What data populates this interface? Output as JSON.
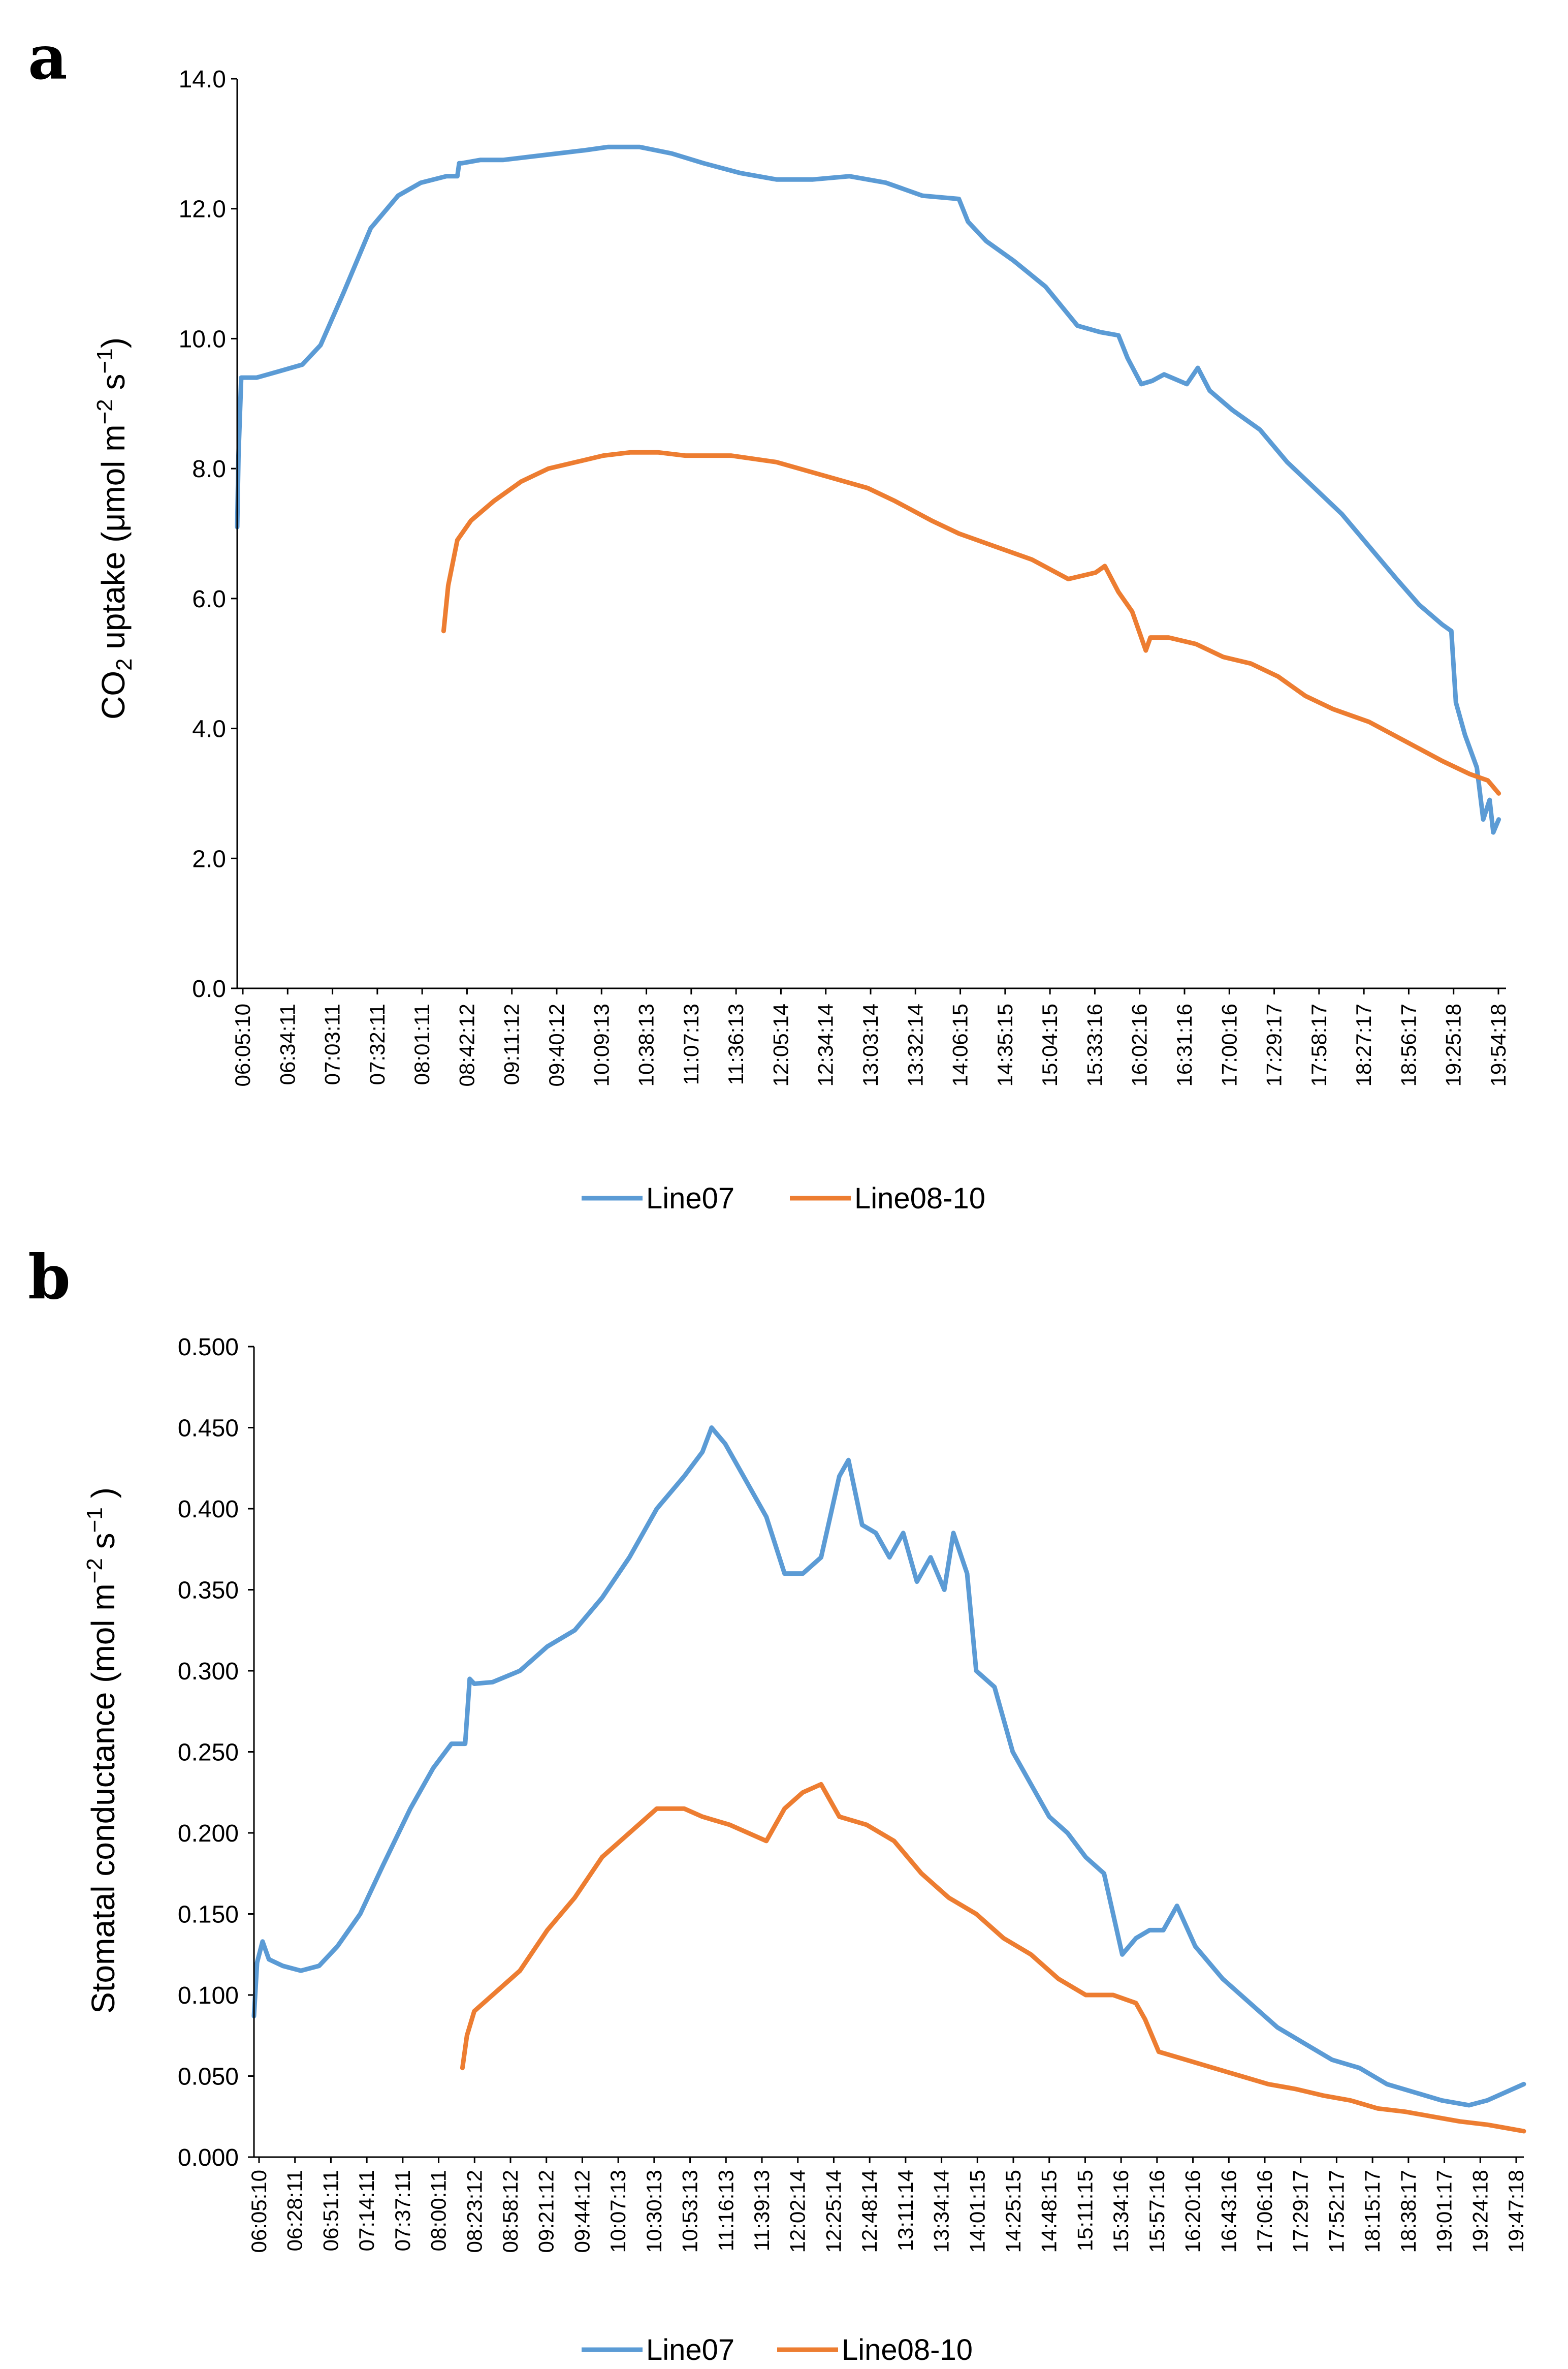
{
  "colors": {
    "line07": "#5b9bd5",
    "line0810": "#ed7d31",
    "axis": "#000000"
  },
  "chart_data": [
    {
      "panel": "a",
      "type": "line",
      "title": "",
      "ylabel_main": "CO",
      "ylabel_sub": "2",
      "ylabel_rest": " uptake  (μmol m",
      "ylabel_sup1": "−2",
      "ylabel_mid": " s",
      "ylabel_sup2": "−1",
      "ylabel_end": ")",
      "ylim": [
        0,
        14
      ],
      "y_ticks": [
        "0.0",
        "2.0",
        "4.0",
        "6.0",
        "8.0",
        "10.0",
        "12.0",
        "14.0"
      ],
      "x_ticks": [
        "06:05:10",
        "06:34:11",
        "07:03:11",
        "07:32:11",
        "08:01:11",
        "08:42:12",
        "09:11:12",
        "09:40:12",
        "10:09:13",
        "10:38:13",
        "11:07:13",
        "11:36:13",
        "12:05:14",
        "12:34:14",
        "13:03:14",
        "13:32:14",
        "14:06:15",
        "14:35:15",
        "15:04:15",
        "15:33:16",
        "16:02:16",
        "16:31:16",
        "17:00:16",
        "17:29:17",
        "17:58:17",
        "18:27:17",
        "18:56:17",
        "19:25:18",
        "19:54:18"
      ],
      "xlim_hours": [
        6.0861,
        20.0
      ],
      "legend": [
        "Line07",
        "Line08-10"
      ],
      "series": [
        {
          "name": "Line07",
          "x_hours": [
            6.086,
            6.1,
            6.13,
            6.18,
            6.3,
            6.55,
            6.8,
            7.0,
            7.25,
            7.55,
            7.85,
            8.1,
            8.38,
            8.5,
            8.52,
            8.55,
            8.75,
            9.0,
            9.3,
            9.6,
            9.9,
            10.15,
            10.5,
            10.85,
            11.2,
            11.6,
            12.0,
            12.4,
            12.8,
            13.2,
            13.6,
            14.0,
            14.1,
            14.3,
            14.6,
            14.95,
            15.3,
            15.55,
            15.75,
            15.85,
            16.0,
            16.12,
            16.25,
            16.5,
            16.62,
            16.75,
            17.0,
            17.3,
            17.6,
            17.9,
            18.2,
            18.5,
            18.8,
            19.05,
            19.3,
            19.4,
            19.45,
            19.55,
            19.68,
            19.75,
            19.82,
            19.86,
            19.92
          ],
          "y": [
            7.1,
            8.2,
            9.4,
            9.4,
            9.4,
            9.5,
            9.6,
            9.9,
            10.7,
            11.7,
            12.2,
            12.4,
            12.5,
            12.5,
            12.7,
            12.7,
            12.75,
            12.75,
            12.8,
            12.85,
            12.9,
            12.95,
            12.95,
            12.85,
            12.7,
            12.55,
            12.45,
            12.45,
            12.5,
            12.4,
            12.2,
            12.15,
            11.8,
            11.5,
            11.2,
            10.8,
            10.2,
            10.1,
            10.05,
            9.7,
            9.3,
            9.35,
            9.45,
            9.3,
            9.55,
            9.2,
            8.9,
            8.6,
            8.1,
            7.7,
            7.3,
            6.8,
            6.3,
            5.9,
            5.6,
            5.5,
            4.4,
            3.9,
            3.4,
            2.6,
            2.9,
            2.4,
            2.6
          ]
        },
        {
          "name": "Line08-10",
          "x_hours": [
            8.35,
            8.4,
            8.5,
            8.65,
            8.9,
            9.2,
            9.5,
            9.8,
            10.1,
            10.4,
            10.7,
            11.0,
            11.5,
            12.0,
            12.5,
            13.0,
            13.3,
            13.7,
            14.0,
            14.4,
            14.8,
            15.2,
            15.5,
            15.6,
            15.75,
            15.9,
            16.0,
            16.05,
            16.1,
            16.3,
            16.6,
            16.9,
            17.2,
            17.5,
            17.8,
            18.1,
            18.5,
            18.9,
            19.3,
            19.6,
            19.8,
            19.92
          ],
          "y": [
            5.5,
            6.2,
            6.9,
            7.2,
            7.5,
            7.8,
            8.0,
            8.1,
            8.2,
            8.25,
            8.25,
            8.2,
            8.2,
            8.1,
            7.9,
            7.7,
            7.5,
            7.2,
            7.0,
            6.8,
            6.6,
            6.3,
            6.4,
            6.5,
            6.1,
            5.8,
            5.4,
            5.2,
            5.4,
            5.4,
            5.3,
            5.1,
            5.0,
            4.8,
            4.5,
            4.3,
            4.1,
            3.8,
            3.5,
            3.3,
            3.2,
            3.0
          ]
        }
      ]
    },
    {
      "panel": "b",
      "type": "line",
      "title": "",
      "ylabel_main": "Stomatal conductance (mol m",
      "ylabel_sup1": "−2",
      "ylabel_mid": " s",
      "ylabel_sup2": "−1",
      "ylabel_end": " )",
      "ylim": [
        0,
        0.5
      ],
      "y_ticks": [
        "0.000",
        "0.050",
        "0.100",
        "0.150",
        "0.200",
        "0.250",
        "0.300",
        "0.350",
        "0.400",
        "0.450",
        "0.500"
      ],
      "x_ticks": [
        "06:05:10",
        "06:28:11",
        "06:51:11",
        "07:14:11",
        "07:37:11",
        "08:00:11",
        "08:23:12",
        "08:58:12",
        "09:21:12",
        "09:44:12",
        "10:07:13",
        "10:30:13",
        "10:53:13",
        "11:16:13",
        "11:39:13",
        "12:02:14",
        "12:25:14",
        "12:48:14",
        "13:11:14",
        "13:34:14",
        "14:01:15",
        "14:25:15",
        "14:48:15",
        "15:11:15",
        "15:34:16",
        "15:57:16",
        "16:20:16",
        "16:43:16",
        "17:06:16",
        "17:29:17",
        "17:52:17",
        "18:15:17",
        "18:38:17",
        "19:01:17",
        "19:24:18",
        "19:47:18"
      ],
      "xlim_hours": [
        6.0861,
        20.0
      ],
      "legend": [
        "Line07",
        "Line08-10"
      ],
      "series": [
        {
          "name": "Line07",
          "x_hours": [
            6.086,
            6.12,
            6.18,
            6.25,
            6.4,
            6.6,
            6.8,
            7.0,
            7.25,
            7.5,
            7.8,
            8.05,
            8.25,
            8.4,
            8.45,
            8.5,
            8.7,
            9.0,
            9.3,
            9.6,
            9.9,
            10.2,
            10.5,
            10.8,
            11.0,
            11.1,
            11.25,
            11.45,
            11.7,
            11.9,
            12.1,
            12.3,
            12.5,
            12.6,
            12.75,
            12.9,
            13.05,
            13.2,
            13.35,
            13.5,
            13.65,
            13.75,
            13.9,
            14.0,
            14.2,
            14.4,
            14.6,
            14.8,
            15.0,
            15.2,
            15.4,
            15.6,
            15.75,
            15.9,
            16.05,
            16.2,
            16.4,
            16.55,
            16.7,
            16.9,
            17.1,
            17.3,
            17.6,
            17.9,
            18.2,
            18.5,
            18.8,
            19.1,
            19.4,
            19.6,
            19.8,
            20.0
          ],
          "y": [
            0.087,
            0.12,
            0.133,
            0.122,
            0.118,
            0.115,
            0.118,
            0.13,
            0.15,
            0.18,
            0.215,
            0.24,
            0.255,
            0.255,
            0.295,
            0.292,
            0.293,
            0.3,
            0.315,
            0.325,
            0.345,
            0.37,
            0.4,
            0.42,
            0.435,
            0.45,
            0.44,
            0.42,
            0.395,
            0.36,
            0.36,
            0.37,
            0.42,
            0.43,
            0.39,
            0.385,
            0.37,
            0.385,
            0.355,
            0.37,
            0.35,
            0.385,
            0.36,
            0.3,
            0.29,
            0.25,
            0.23,
            0.21,
            0.2,
            0.185,
            0.175,
            0.125,
            0.135,
            0.14,
            0.14,
            0.155,
            0.13,
            0.12,
            0.11,
            0.1,
            0.09,
            0.08,
            0.07,
            0.06,
            0.055,
            0.045,
            0.04,
            0.035,
            0.032,
            0.035,
            0.04,
            0.045
          ]
        },
        {
          "name": "Line08-10",
          "x_hours": [
            8.37,
            8.42,
            8.5,
            8.7,
            9.0,
            9.3,
            9.6,
            9.9,
            10.2,
            10.5,
            10.8,
            11.0,
            11.3,
            11.5,
            11.7,
            11.9,
            12.1,
            12.3,
            12.5,
            12.8,
            13.1,
            13.4,
            13.7,
            14.0,
            14.3,
            14.6,
            14.9,
            15.2,
            15.5,
            15.75,
            15.85,
            16.0,
            16.3,
            16.6,
            16.9,
            17.2,
            17.5,
            17.8,
            18.1,
            18.4,
            18.7,
            19.0,
            19.3,
            19.6,
            19.8,
            20.0
          ],
          "y": [
            0.055,
            0.075,
            0.09,
            0.1,
            0.115,
            0.14,
            0.16,
            0.185,
            0.2,
            0.215,
            0.215,
            0.21,
            0.205,
            0.2,
            0.195,
            0.215,
            0.225,
            0.23,
            0.21,
            0.205,
            0.195,
            0.175,
            0.16,
            0.15,
            0.135,
            0.125,
            0.11,
            0.1,
            0.1,
            0.095,
            0.085,
            0.065,
            0.06,
            0.055,
            0.05,
            0.045,
            0.042,
            0.038,
            0.035,
            0.03,
            0.028,
            0.025,
            0.022,
            0.02,
            0.018,
            0.016
          ]
        }
      ]
    }
  ]
}
